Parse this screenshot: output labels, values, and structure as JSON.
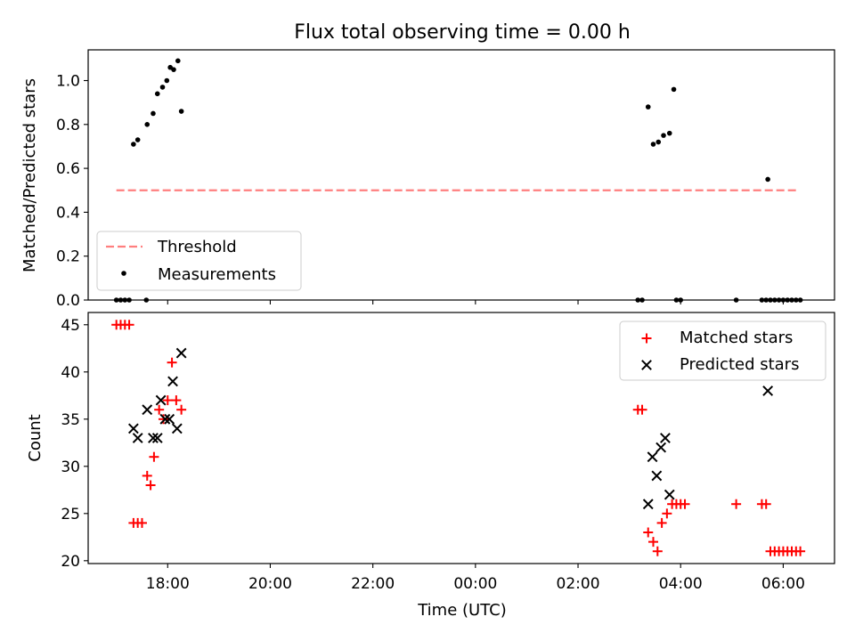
{
  "figure": {
    "title": "Flux total observing time = 0.00 h",
    "xlabel": "Time (UTC)"
  },
  "colors": {
    "threshold": "#ff7f7f",
    "measurements": "#000000",
    "matched": "#ff0000",
    "predicted": "#000000"
  },
  "chart_data": [
    {
      "type": "scatter",
      "ylabel": "Matched/Predicted stars",
      "ylim": [
        0,
        1.14
      ],
      "yticks": [
        "0.0",
        "0.2",
        "0.4",
        "0.6",
        "0.8",
        "1.0"
      ],
      "legend": {
        "placement": "lower-left",
        "entries": [
          "Threshold",
          "Measurements"
        ]
      },
      "threshold": {
        "name": "Threshold",
        "style": "dashed",
        "y": 0.5,
        "x_start": "17:00",
        "x_end": "06:18"
      },
      "series": [
        {
          "name": "Measurements",
          "marker": "dot",
          "points": [
            [
              "17:00",
              0.0
            ],
            [
              "17:05",
              0.0
            ],
            [
              "17:10",
              0.0
            ],
            [
              "17:15",
              0.0
            ],
            [
              "17:35",
              0.0
            ],
            [
              "17:20",
              0.71
            ],
            [
              "17:25",
              0.73
            ],
            [
              "17:36",
              0.8
            ],
            [
              "17:43",
              0.85
            ],
            [
              "17:48",
              0.94
            ],
            [
              "17:54",
              0.97
            ],
            [
              "17:59",
              1.0
            ],
            [
              "18:03",
              1.06
            ],
            [
              "18:07",
              1.05
            ],
            [
              "18:12",
              1.09
            ],
            [
              "18:16",
              0.86
            ],
            [
              "03:10",
              0.0
            ],
            [
              "03:15",
              0.0
            ],
            [
              "03:55",
              0.0
            ],
            [
              "04:00",
              0.0
            ],
            [
              "03:22",
              0.88
            ],
            [
              "03:28",
              0.71
            ],
            [
              "03:34",
              0.72
            ],
            [
              "03:40",
              0.75
            ],
            [
              "03:47",
              0.76
            ],
            [
              "03:52",
              0.96
            ],
            [
              "05:05",
              0.0
            ],
            [
              "05:35",
              0.0
            ],
            [
              "05:40",
              0.0
            ],
            [
              "05:45",
              0.0
            ],
            [
              "05:50",
              0.0
            ],
            [
              "05:55",
              0.0
            ],
            [
              "06:00",
              0.0
            ],
            [
              "06:05",
              0.0
            ],
            [
              "06:10",
              0.0
            ],
            [
              "06:15",
              0.0
            ],
            [
              "06:20",
              0.0
            ],
            [
              "05:42",
              0.55
            ]
          ]
        }
      ]
    },
    {
      "type": "scatter",
      "ylabel": "Count",
      "ylim": [
        19.7,
        46.3
      ],
      "yticks": [
        "20",
        "25",
        "30",
        "35",
        "40",
        "45"
      ],
      "xlim": [
        "16:27",
        "07:00"
      ],
      "xticks": [
        "18:00",
        "20:00",
        "22:00",
        "00:00",
        "02:00",
        "04:00",
        "06:00"
      ],
      "legend": {
        "placement": "top-right",
        "entries": [
          "Matched stars",
          "Predicted stars"
        ]
      },
      "series": [
        {
          "name": "Matched stars",
          "marker": "plus",
          "points": [
            [
              "17:00",
              45
            ],
            [
              "17:05",
              45
            ],
            [
              "17:10",
              45
            ],
            [
              "17:15",
              45
            ],
            [
              "17:20",
              24
            ],
            [
              "17:25",
              24
            ],
            [
              "17:30",
              24
            ],
            [
              "17:36",
              29
            ],
            [
              "17:40",
              28
            ],
            [
              "17:44",
              31
            ],
            [
              "17:50",
              36
            ],
            [
              "17:55",
              35
            ],
            [
              "18:00",
              37
            ],
            [
              "18:05",
              41
            ],
            [
              "18:10",
              37
            ],
            [
              "18:16",
              36
            ],
            [
              "03:10",
              36
            ],
            [
              "03:15",
              36
            ],
            [
              "03:22",
              23
            ],
            [
              "03:28",
              22
            ],
            [
              "03:33",
              21
            ],
            [
              "03:38",
              24
            ],
            [
              "03:44",
              25
            ],
            [
              "03:50",
              26
            ],
            [
              "03:55",
              26
            ],
            [
              "04:00",
              26
            ],
            [
              "04:05",
              26
            ],
            [
              "05:05",
              26
            ],
            [
              "05:35",
              26
            ],
            [
              "05:40",
              26
            ],
            [
              "05:45",
              21
            ],
            [
              "05:50",
              21
            ],
            [
              "05:55",
              21
            ],
            [
              "06:00",
              21
            ],
            [
              "06:05",
              21
            ],
            [
              "06:10",
              21
            ],
            [
              "06:15",
              21
            ],
            [
              "06:20",
              21
            ]
          ]
        },
        {
          "name": "Predicted stars",
          "marker": "x",
          "points": [
            [
              "17:20",
              34
            ],
            [
              "17:25",
              33
            ],
            [
              "17:36",
              36
            ],
            [
              "17:43",
              33
            ],
            [
              "17:48",
              33
            ],
            [
              "17:52",
              37
            ],
            [
              "17:57",
              35
            ],
            [
              "18:02",
              35
            ],
            [
              "18:06",
              39
            ],
            [
              "18:11",
              34
            ],
            [
              "18:16",
              42
            ],
            [
              "03:22",
              26
            ],
            [
              "03:27",
              31
            ],
            [
              "03:32",
              29
            ],
            [
              "03:37",
              32
            ],
            [
              "03:42",
              33
            ],
            [
              "03:47",
              27
            ],
            [
              "05:42",
              38
            ]
          ]
        }
      ]
    }
  ]
}
